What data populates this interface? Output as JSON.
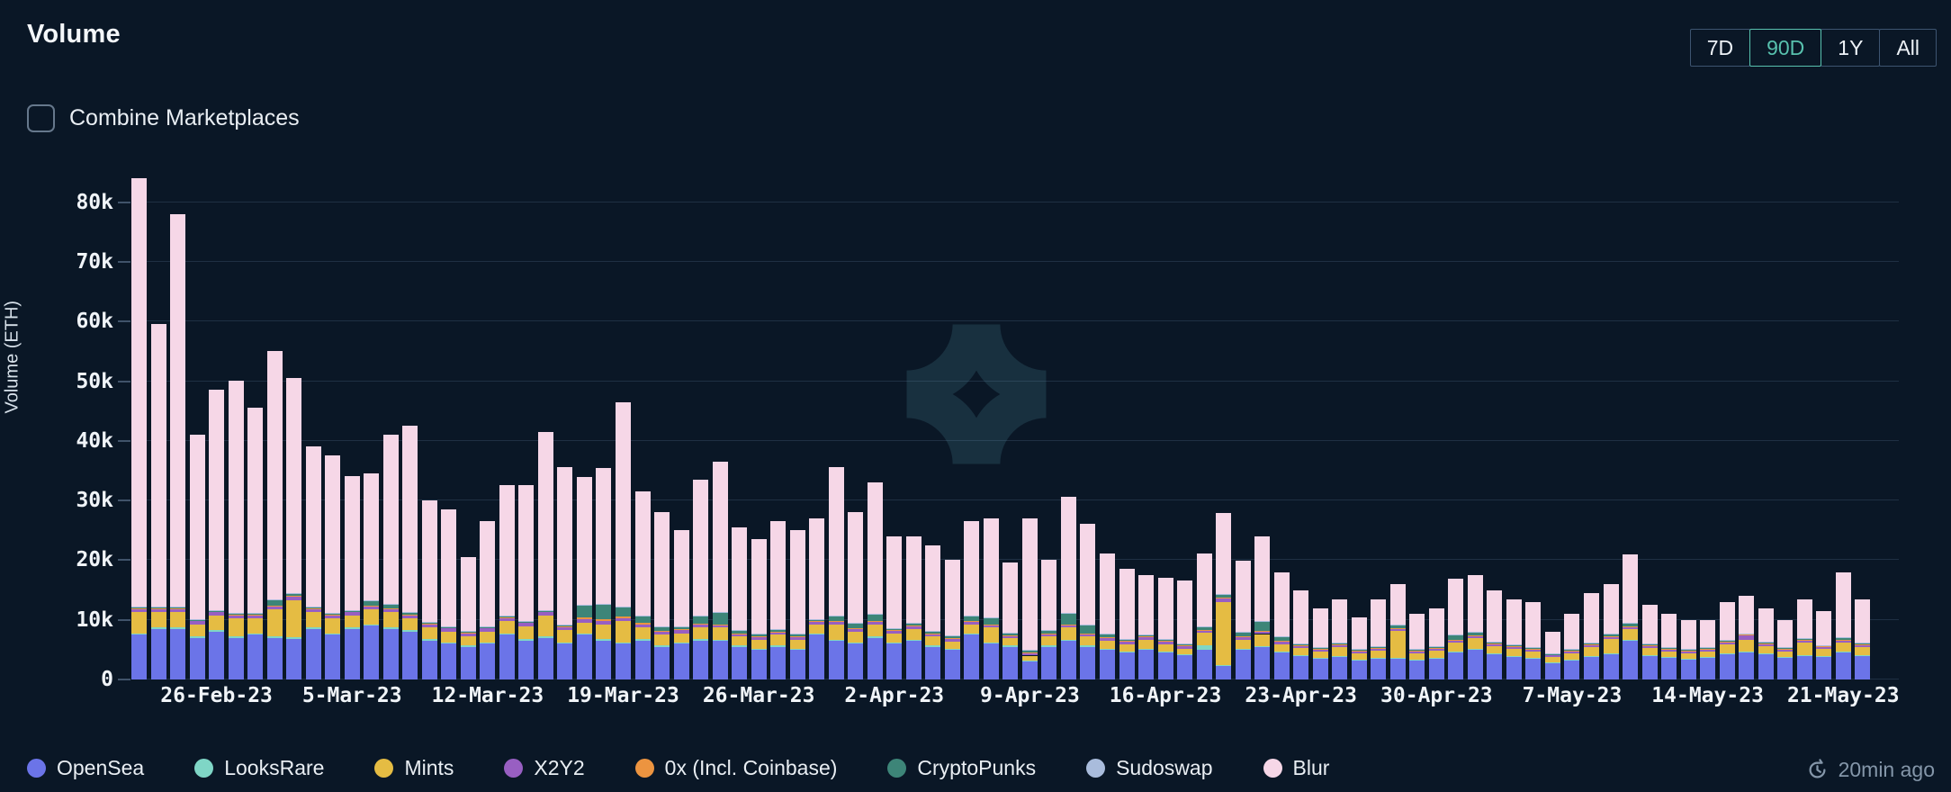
{
  "header": {
    "title": "Volume",
    "range_buttons": [
      {
        "label": "7D",
        "selected": false
      },
      {
        "label": "90D",
        "selected": true
      },
      {
        "label": "1Y",
        "selected": false
      },
      {
        "label": "All",
        "selected": false
      }
    ],
    "selected_range_color": "#58c1ae"
  },
  "controls": {
    "combine_checkbox_label": "Combine Marketplaces",
    "combine_checked": false
  },
  "status": {
    "last_updated": "20min ago"
  },
  "legend": {
    "items": [
      {
        "label": "OpenSea",
        "color": "#6b74e8"
      },
      {
        "label": "LooksRare",
        "color": "#7fd6c6"
      },
      {
        "label": "Mints",
        "color": "#e5bc43"
      },
      {
        "label": "X2Y2",
        "color": "#985fc2"
      },
      {
        "label": "0x (Incl. Coinbase)",
        "color": "#ec9440"
      },
      {
        "label": "CryptoPunks",
        "color": "#3d8578"
      },
      {
        "label": "Sudoswap",
        "color": "#a9bcdc"
      },
      {
        "label": "Blur",
        "color": "#f6d7e7"
      }
    ]
  },
  "chart_data": {
    "type": "bar",
    "subtype": "stacked",
    "title": "Volume",
    "xlabel": "",
    "ylabel": "Volume (ETH)",
    "values_unit": "thousand ETH (k)",
    "ylim": [
      0,
      88
    ],
    "grid": true,
    "legend_position": "bottom",
    "y_tick_labels": [
      "0",
      "10k",
      "20k",
      "30k",
      "40k",
      "50k",
      "60k",
      "70k",
      "80k"
    ],
    "y_tick_values": [
      0,
      10,
      20,
      30,
      40,
      50,
      60,
      70,
      80
    ],
    "x_tick_indices": [
      4,
      11,
      18,
      25,
      32,
      39,
      46,
      53,
      60,
      67,
      74,
      81,
      88
    ],
    "x_tick_labels": [
      "26-Feb-23",
      "5-Mar-23",
      "12-Mar-23",
      "19-Mar-23",
      "26-Mar-23",
      "2-Apr-23",
      "9-Apr-23",
      "16-Apr-23",
      "23-Apr-23",
      "30-Apr-23",
      "7-May-23",
      "14-May-23",
      "21-May-23"
    ],
    "dates": [
      "22-Feb-23",
      "23-Feb-23",
      "24-Feb-23",
      "25-Feb-23",
      "26-Feb-23",
      "27-Feb-23",
      "28-Feb-23",
      "1-Mar-23",
      "2-Mar-23",
      "3-Mar-23",
      "4-Mar-23",
      "5-Mar-23",
      "6-Mar-23",
      "7-Mar-23",
      "8-Mar-23",
      "9-Mar-23",
      "10-Mar-23",
      "11-Mar-23",
      "12-Mar-23",
      "13-Mar-23",
      "14-Mar-23",
      "15-Mar-23",
      "16-Mar-23",
      "17-Mar-23",
      "18-Mar-23",
      "19-Mar-23",
      "20-Mar-23",
      "21-Mar-23",
      "22-Mar-23",
      "23-Mar-23",
      "24-Mar-23",
      "25-Mar-23",
      "26-Mar-23",
      "27-Mar-23",
      "28-Mar-23",
      "29-Mar-23",
      "30-Mar-23",
      "31-Mar-23",
      "1-Apr-23",
      "2-Apr-23",
      "3-Apr-23",
      "4-Apr-23",
      "5-Apr-23",
      "6-Apr-23",
      "7-Apr-23",
      "8-Apr-23",
      "9-Apr-23",
      "10-Apr-23",
      "11-Apr-23",
      "12-Apr-23",
      "13-Apr-23",
      "14-Apr-23",
      "15-Apr-23",
      "16-Apr-23",
      "17-Apr-23",
      "18-Apr-23",
      "19-Apr-23",
      "20-Apr-23",
      "21-Apr-23",
      "22-Apr-23",
      "23-Apr-23",
      "24-Apr-23",
      "25-Apr-23",
      "26-Apr-23",
      "27-Apr-23",
      "28-Apr-23",
      "29-Apr-23",
      "30-Apr-23",
      "1-May-23",
      "2-May-23",
      "3-May-23",
      "4-May-23",
      "5-May-23",
      "6-May-23",
      "7-May-23",
      "8-May-23",
      "9-May-23",
      "10-May-23",
      "11-May-23",
      "12-May-23",
      "13-May-23",
      "14-May-23",
      "15-May-23",
      "16-May-23",
      "17-May-23",
      "18-May-23",
      "19-May-23",
      "20-May-23",
      "21-May-23",
      "22-May-23"
    ],
    "series": [
      {
        "name": "OpenSea",
        "color": "#6b74e8",
        "values": [
          7.5,
          8.5,
          8.5,
          7,
          8,
          7,
          7.5,
          7,
          6.8,
          8.5,
          7.5,
          8.5,
          9,
          8.5,
          8,
          6.5,
          6,
          5.5,
          6,
          7.5,
          6.5,
          7,
          6,
          7.5,
          6.5,
          6,
          6.5,
          5.5,
          6,
          6.5,
          6.5,
          5.5,
          5,
          5.5,
          5,
          7.5,
          6.5,
          6,
          7,
          6,
          6.5,
          5.5,
          5,
          7.5,
          6,
          5.5,
          3,
          5.5,
          6.5,
          5.5,
          5,
          4.5,
          5,
          4.5,
          4,
          5,
          2.3,
          5,
          5.5,
          4.5,
          4,
          3.5,
          3.8,
          3.2,
          3.5,
          3.5,
          3.2,
          3.5,
          4.5,
          5,
          4.2,
          3.8,
          3.5,
          2.8,
          3.2,
          3.8,
          4.2,
          6.5,
          4,
          3.6,
          3.4,
          3.6,
          4.2,
          4.5,
          4.2,
          3.6,
          4,
          3.8,
          4.5,
          4
        ]
      },
      {
        "name": "LooksRare",
        "color": "#7fd6c6",
        "values": [
          0.25,
          0.25,
          0.25,
          0.25,
          0.25,
          0.25,
          0.25,
          0.25,
          0.25,
          0.25,
          0.25,
          0.25,
          0.25,
          0.25,
          0.25,
          0.25,
          0.25,
          0.25,
          0.25,
          0.25,
          0.25,
          0.25,
          0.25,
          0.25,
          0.25,
          0.25,
          0.25,
          0.25,
          0.25,
          0.25,
          0.2,
          0.2,
          0.2,
          0.2,
          0.2,
          0.2,
          0.2,
          0.2,
          0.2,
          0.2,
          0.2,
          0.2,
          0.2,
          0.2,
          0.2,
          0.2,
          0.2,
          0.2,
          0.2,
          0.2,
          0.2,
          0.2,
          0.2,
          0.2,
          0.2,
          0.8,
          0.12,
          0.12,
          0.12,
          0.12,
          0.12,
          0.12,
          0.12,
          0.12,
          0.12,
          0.12,
          0.12,
          0.12,
          0.12,
          0.12,
          0.12,
          0.12,
          0.12,
          0.12,
          0.12,
          0.12,
          0.12,
          0.12,
          0.12,
          0.12,
          0.12,
          0.12,
          0.12,
          0.12,
          0.12,
          0.12,
          0.12,
          0.12,
          0.12,
          0.12
        ]
      },
      {
        "name": "Mints",
        "color": "#e5bc43",
        "values": [
          3.5,
          2.5,
          2.5,
          2,
          2.5,
          3,
          2.5,
          4.5,
          6.3,
          2.5,
          2.5,
          2,
          2.5,
          2.5,
          2,
          2,
          1.8,
          1.5,
          1.8,
          2,
          2.2,
          3.5,
          2,
          1.8,
          2.5,
          3.5,
          2,
          1.8,
          1.5,
          2,
          2,
          1.5,
          1.5,
          1.8,
          1.5,
          1.5,
          2.5,
          1.8,
          2,
          1.5,
          1.8,
          1.5,
          1.2,
          1.5,
          2.5,
          1.2,
          0.8,
          1.5,
          2,
          1.5,
          1.3,
          1.2,
          1.5,
          1.2,
          1,
          2,
          10.5,
          1.5,
          2,
          1.3,
          1.2,
          1,
          1.5,
          1,
          1.2,
          4.5,
          1,
          1.2,
          1.5,
          1.8,
          1.3,
          1.2,
          1,
          0.8,
          1,
          1.5,
          2.5,
          1.8,
          1.2,
          1,
          0.9,
          1,
          1.5,
          2,
          1.3,
          1,
          2,
          1.2,
          1.5,
          1.3
        ]
      },
      {
        "name": "X2Y2",
        "color": "#985fc2",
        "values": [
          0.5,
          0.5,
          0.5,
          0.5,
          0.5,
          0.5,
          0.5,
          0.5,
          0.5,
          0.5,
          0.5,
          0.5,
          0.5,
          0.5,
          0.5,
          0.5,
          0.5,
          0.5,
          0.5,
          0.5,
          0.5,
          0.5,
          0.5,
          0.5,
          0.5,
          0.5,
          0.5,
          0.5,
          0.5,
          0.5,
          0.4,
          0.4,
          0.4,
          0.4,
          0.4,
          0.4,
          0.4,
          0.4,
          0.4,
          0.4,
          0.4,
          0.4,
          0.4,
          0.4,
          0.4,
          0.4,
          0.4,
          0.4,
          0.4,
          0.4,
          0.4,
          0.4,
          0.4,
          0.4,
          0.4,
          0.4,
          0.6,
          0.4,
          0.4,
          0.4,
          0.3,
          0.3,
          0.3,
          0.3,
          0.3,
          0.3,
          0.3,
          0.3,
          0.3,
          0.3,
          0.3,
          0.3,
          0.3,
          0.3,
          0.3,
          0.3,
          0.3,
          0.3,
          0.3,
          0.3,
          0.3,
          0.3,
          0.3,
          0.7,
          0.3,
          0.3,
          0.3,
          0.3,
          0.3,
          0.3
        ]
      },
      {
        "name": "0x (Incl. Coinbase)",
        "color": "#ec9440",
        "values": [
          0.15,
          0.15,
          0.15,
          0.15,
          0.15,
          0.15,
          0.15,
          0.15,
          0.15,
          0.15,
          0.15,
          0.15,
          0.15,
          0.15,
          0.15,
          0.15,
          0.15,
          0.15,
          0.15,
          0.15,
          0.15,
          0.15,
          0.15,
          0.3,
          0.3,
          0.3,
          0.3,
          0.15,
          0.15,
          0.15,
          0.15,
          0.15,
          0.15,
          0.15,
          0.15,
          0.15,
          0.15,
          0.15,
          0.15,
          0.15,
          0.15,
          0.15,
          0.15,
          0.15,
          0.15,
          0.15,
          0.15,
          0.15,
          0.15,
          0.15,
          0.15,
          0.15,
          0.15,
          0.15,
          0.15,
          0.15,
          0.15,
          0.15,
          0.15,
          0.15,
          0.15,
          0.15,
          0.15,
          0.15,
          0.15,
          0.15,
          0.15,
          0.15,
          0.15,
          0.15,
          0.15,
          0.15,
          0.15,
          0.15,
          0.15,
          0.15,
          0.15,
          0.15,
          0.15,
          0.15,
          0.15,
          0.15,
          0.15,
          0.15,
          0.15,
          0.15,
          0.15,
          0.15,
          0.15,
          0.15
        ]
      },
      {
        "name": "CryptoPunks",
        "color": "#3d8578",
        "values": [
          0.1,
          0.1,
          0.1,
          0.1,
          0.1,
          0.1,
          0.1,
          0.9,
          0.3,
          0.1,
          0.1,
          0.1,
          0.7,
          0.6,
          0.2,
          0.1,
          0.1,
          0.1,
          0.1,
          0.1,
          0.1,
          0.1,
          0.1,
          2.0,
          2.5,
          1.5,
          1.0,
          0.5,
          0.3,
          1.2,
          2.0,
          0.4,
          0.3,
          0.3,
          0.4,
          0.3,
          0.9,
          0.8,
          1.2,
          0.3,
          0.3,
          0.3,
          0.3,
          0.8,
          1.0,
          0.3,
          0.4,
          0.5,
          1.8,
          1.4,
          0.6,
          0.3,
          0.2,
          0.2,
          0.2,
          0.5,
          0.6,
          0.8,
          1.5,
          0.7,
          0.2,
          0.2,
          0.2,
          0.2,
          0.2,
          0.6,
          0.2,
          0.2,
          0.8,
          0.6,
          0.2,
          0.2,
          0.2,
          0.1,
          0.2,
          0.2,
          0.4,
          0.5,
          0.2,
          0.1,
          0.1,
          0.1,
          0.2,
          0.2,
          0.1,
          0.1,
          0.3,
          0.1,
          0.4,
          0.2
        ]
      },
      {
        "name": "Sudoswap",
        "color": "#a9bcdc",
        "values": [
          0.15,
          0.15,
          0.15,
          0.15,
          0.15,
          0.15,
          0.15,
          0.15,
          0.15,
          0.15,
          0.15,
          0.15,
          0.15,
          0.15,
          0.15,
          0.15,
          0.15,
          0.15,
          0.15,
          0.15,
          0.15,
          0.15,
          0.15,
          0.15,
          0.15,
          0.15,
          0.15,
          0.15,
          0.15,
          0.15,
          0.1,
          0.1,
          0.1,
          0.1,
          0.1,
          0.1,
          0.1,
          0.1,
          0.1,
          0.1,
          0.1,
          0.1,
          0.1,
          0.1,
          0.1,
          0.1,
          0.1,
          0.1,
          0.1,
          0.1,
          0.1,
          0.1,
          0.1,
          0.1,
          0.1,
          0.1,
          0.1,
          0.1,
          0.1,
          0.1,
          0.1,
          0.1,
          0.1,
          0.1,
          0.1,
          0.1,
          0.1,
          0.1,
          0.1,
          0.1,
          0.1,
          0.1,
          0.1,
          0.1,
          0.1,
          0.1,
          0.1,
          0.1,
          0.1,
          0.1,
          0.1,
          0.1,
          0.1,
          0.1,
          0.1,
          0.1,
          0.1,
          0.1,
          0.1,
          0.1
        ]
      },
      {
        "name": "Blur",
        "color": "#f6d7e7",
        "values": [
          71.9,
          47.4,
          65.9,
          30.9,
          36.9,
          38.9,
          34.4,
          41.6,
          36.1,
          26.9,
          26.4,
          22.4,
          21.3,
          28.4,
          31.3,
          20.4,
          19.6,
          12.4,
          17.6,
          21.9,
          22.7,
          29.9,
          26.4,
          21.5,
          22.8,
          34.3,
          20.8,
          19.2,
          16.2,
          22.8,
          25.2,
          17.3,
          15.9,
          18.1,
          17.3,
          16.9,
          24.8,
          18.6,
          22.0,
          15.4,
          14.6,
          14.4,
          12.7,
          15.9,
          16.7,
          11.7,
          22.0,
          11.7,
          19.4,
          16.8,
          13.3,
          11.7,
          10.0,
          10.3,
          10.5,
          12.1,
          13.6,
          11.9,
          14.2,
          10.7,
          8.9,
          6.6,
          7.3,
          5.4,
          7.9,
          6.7,
          5.9,
          6.4,
          9.5,
          9.4,
          8.6,
          7.6,
          7.6,
          3.6,
          5.9,
          8.3,
          8.2,
          11.5,
          6.4,
          5.6,
          4.9,
          4.6,
          6.4,
          6.2,
          5.7,
          4.6,
          6.5,
          5.7,
          10.9,
          7.3
        ]
      }
    ]
  }
}
